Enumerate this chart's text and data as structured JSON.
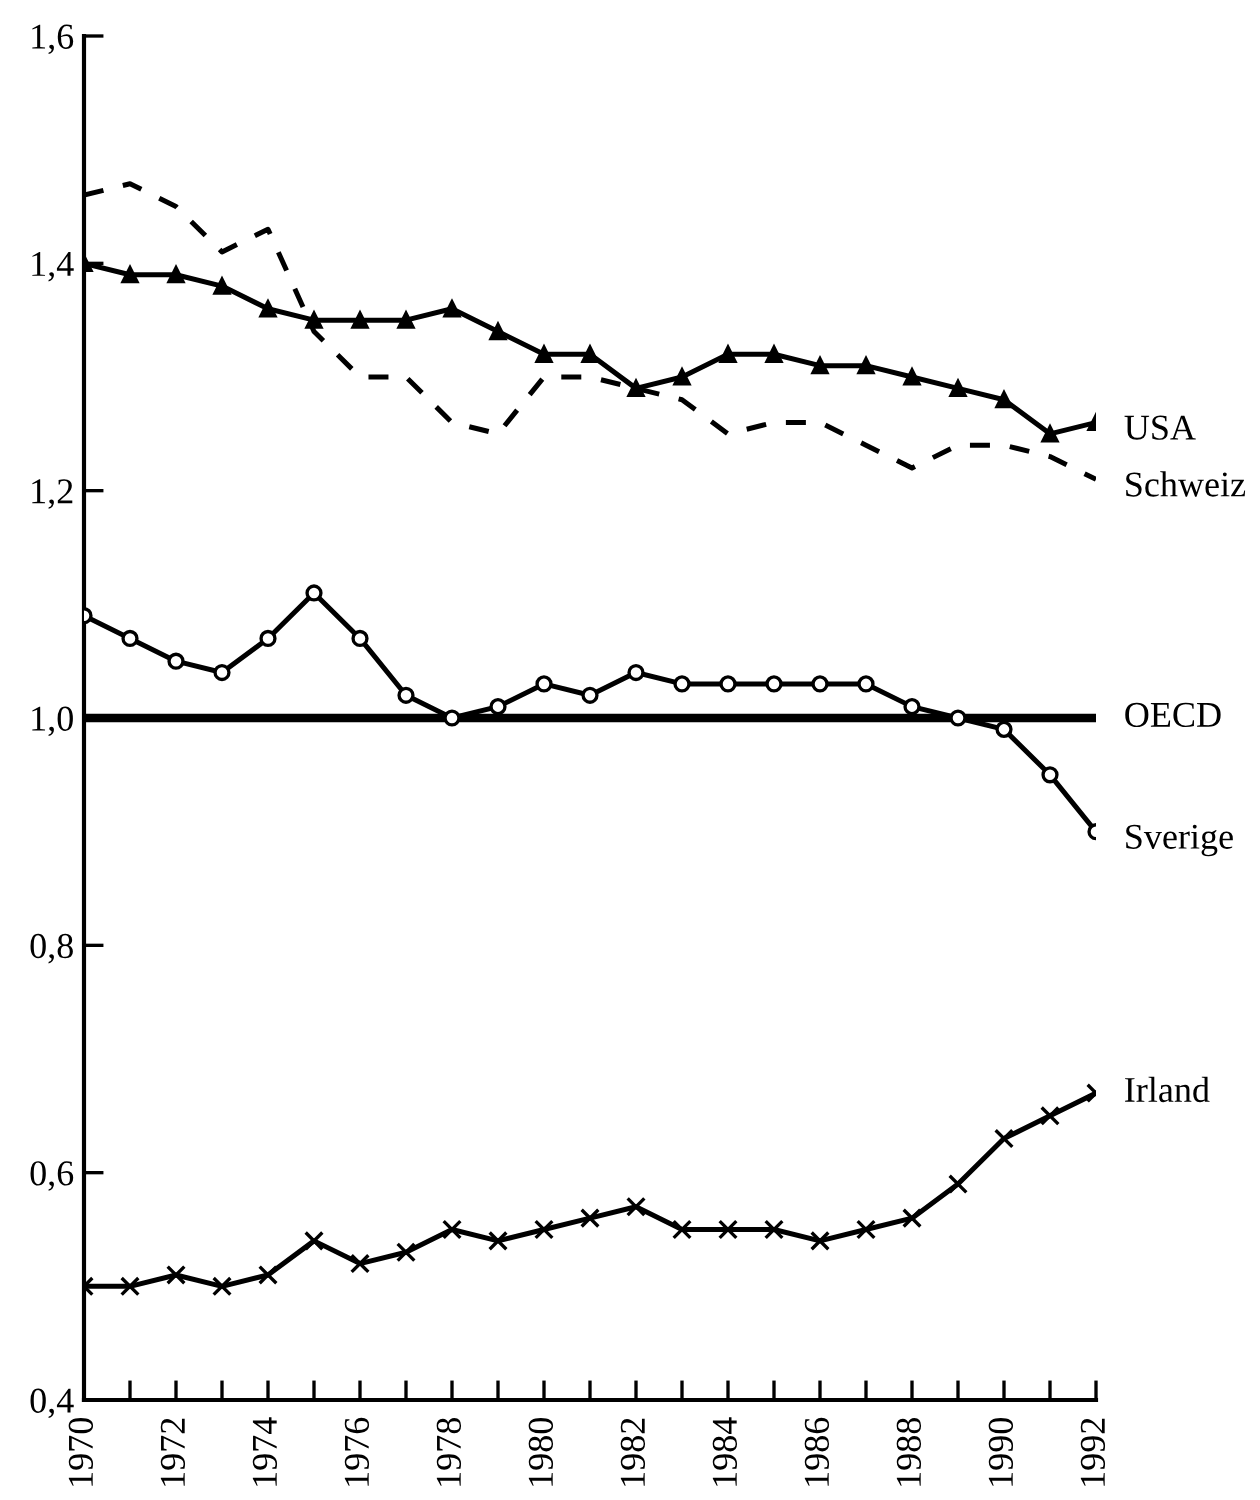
{
  "chart_data": {
    "type": "line",
    "x": [
      1970,
      1971,
      1972,
      1973,
      1974,
      1975,
      1976,
      1977,
      1978,
      1979,
      1980,
      1981,
      1982,
      1983,
      1984,
      1985,
      1986,
      1987,
      1988,
      1989,
      1990,
      1991,
      1992
    ],
    "xlim": [
      1970,
      1992
    ],
    "xticks": [
      1970,
      {
        "value": 1971,
        "label": null
      },
      1972,
      {
        "value": 1973,
        "label": null
      },
      1974,
      {
        "value": 1975,
        "label": null
      },
      1976,
      {
        "value": 1977,
        "label": null
      },
      1978,
      {
        "value": 1979,
        "label": null
      },
      1980,
      {
        "value": 1981,
        "label": null
      },
      1982,
      {
        "value": 1983,
        "label": null
      },
      1984,
      {
        "value": 1985,
        "label": null
      },
      1986,
      {
        "value": 1987,
        "label": null
      },
      1988,
      {
        "value": 1989,
        "label": null
      },
      1990,
      {
        "value": 1991,
        "label": null
      },
      1992
    ],
    "ylim": [
      0.4,
      1.6
    ],
    "yticks": [
      {
        "value": 0.4,
        "label": "0,4"
      },
      {
        "value": 0.6,
        "label": "0,6"
      },
      {
        "value": 0.8,
        "label": "0,8"
      },
      {
        "value": 1.0,
        "label": "1,0"
      },
      {
        "value": 1.2,
        "label": "1,2"
      },
      {
        "value": 1.4,
        "label": "1,4"
      },
      {
        "value": 1.6,
        "label": "1,6"
      }
    ],
    "grid": false,
    "legend": false,
    "series": [
      {
        "name": "USA",
        "color": "#000000",
        "marker": "triangle",
        "line_style": "solid",
        "values": [
          1.4,
          1.39,
          1.39,
          1.38,
          1.36,
          1.35,
          1.35,
          1.35,
          1.36,
          1.34,
          1.32,
          1.32,
          1.29,
          1.3,
          1.32,
          1.32,
          1.31,
          1.31,
          1.3,
          1.29,
          1.28,
          1.25,
          1.26
        ]
      },
      {
        "name": "Schweiz",
        "color": "#000000",
        "marker": "none",
        "line_style": "dashed",
        "values": [
          1.46,
          1.47,
          1.45,
          1.41,
          1.43,
          1.34,
          1.3,
          1.3,
          1.26,
          1.25,
          1.3,
          1.3,
          1.29,
          1.28,
          1.25,
          1.26,
          1.26,
          1.24,
          1.22,
          1.24,
          1.24,
          1.23,
          1.21
        ]
      },
      {
        "name": "Sverige",
        "color": "#000000",
        "marker": "circle",
        "line_style": "solid",
        "values": [
          1.09,
          1.07,
          1.05,
          1.04,
          1.07,
          1.11,
          1.07,
          1.02,
          1.0,
          1.01,
          1.03,
          1.02,
          1.04,
          1.03,
          1.03,
          1.03,
          1.03,
          1.03,
          1.01,
          1.0,
          0.99,
          0.95,
          0.9
        ]
      },
      {
        "name": "Irland",
        "color": "#000000",
        "marker": "cross",
        "line_style": "solid",
        "values": [
          0.5,
          0.5,
          0.51,
          0.5,
          0.51,
          0.54,
          0.52,
          0.53,
          0.55,
          0.54,
          0.55,
          0.56,
          0.57,
          0.55,
          0.55,
          0.55,
          0.54,
          0.55,
          0.56,
          0.59,
          0.63,
          0.65,
          0.67
        ]
      }
    ],
    "ref_lines": [
      {
        "axis": "y",
        "value": 1.0,
        "label": "OECD",
        "color": "#000000",
        "line_style": "solid"
      }
    ]
  }
}
